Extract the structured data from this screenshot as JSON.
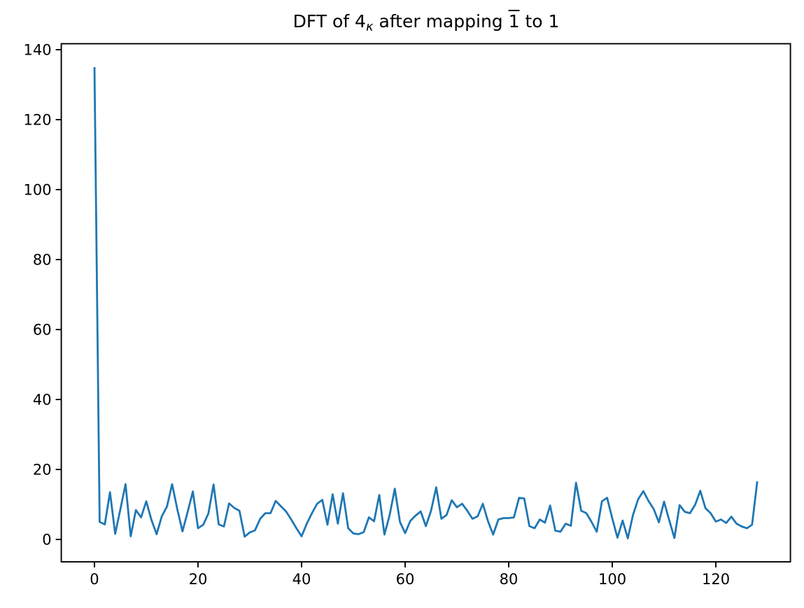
{
  "title": {
    "prefix": "DFT of 4",
    "subscript": "κ",
    "middle": " after mapping ",
    "overlined": "1",
    "suffix": " to 1"
  },
  "chart_data": {
    "type": "line",
    "title": "DFT of 4_κ after mapping 1̄ to 1",
    "xlabel": "",
    "ylabel": "",
    "x_start": 0,
    "x_step": 1,
    "values": [
      135,
      5.0,
      4.3,
      13.5,
      1.6,
      8.6,
      15.8,
      0.9,
      8.4,
      6.3,
      10.9,
      5.6,
      1.5,
      6.6,
      9.4,
      15.8,
      8.6,
      2.3,
      7.9,
      13.7,
      3.2,
      4.2,
      7.4,
      15.7,
      4.3,
      3.7,
      10.3,
      9.0,
      8.2,
      0.8,
      2.0,
      2.6,
      5.9,
      7.5,
      7.5,
      11.0,
      9.5,
      8.0,
      5.7,
      3.2,
      0.9,
      4.5,
      7.5,
      10.2,
      11.3,
      4.2,
      12.9,
      4.5,
      13.2,
      3.2,
      1.7,
      1.5,
      2.1,
      6.3,
      5.2,
      12.7,
      1.4,
      6.9,
      14.5,
      5.0,
      1.8,
      5.3,
      6.8,
      8.0,
      3.8,
      8.2,
      14.9,
      5.9,
      7.0,
      11.2,
      9.2,
      10.2,
      8.2,
      5.9,
      6.6,
      10.2,
      5.2,
      1.4,
      5.7,
      6.1,
      6.1,
      6.3,
      11.9,
      11.7,
      3.8,
      3.2,
      5.7,
      4.8,
      9.7,
      2.5,
      2.2,
      4.5,
      3.9,
      16.2,
      8.2,
      7.5,
      5.0,
      2.2,
      10.9,
      11.9,
      6.0,
      0.5,
      5.4,
      0.3,
      7.0,
      11.5,
      13.8,
      11.0,
      8.7,
      4.9,
      10.8,
      5.5,
      0.4,
      9.8,
      7.9,
      7.5,
      9.9,
      13.9,
      8.9,
      7.5,
      5.1,
      5.7,
      4.7,
      6.5,
      4.5,
      3.7,
      3.2,
      4.2,
      16.6
    ],
    "xlim": [
      -6.4,
      134.4
    ],
    "ylim": [
      -6.4,
      141.7
    ],
    "x_ticks": [
      0,
      20,
      40,
      60,
      80,
      100,
      120
    ],
    "y_ticks": [
      0,
      20,
      40,
      60,
      80,
      100,
      120,
      140
    ],
    "grid": false,
    "legend": null,
    "line_color": "#1f77b4",
    "axis_color": "#000000"
  }
}
